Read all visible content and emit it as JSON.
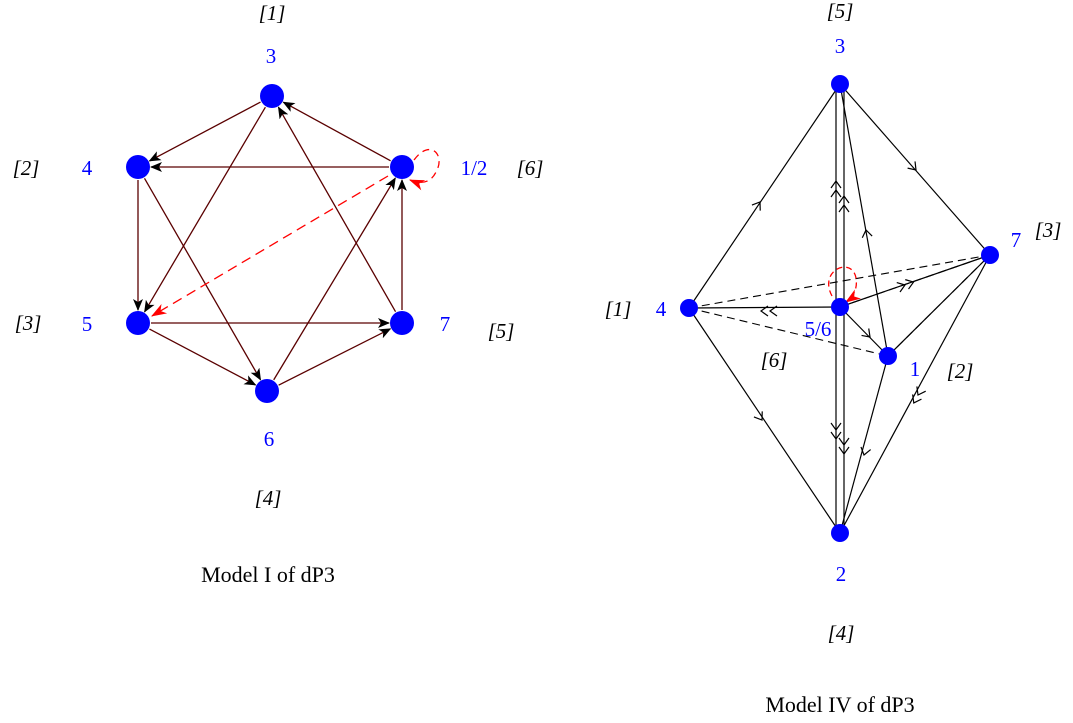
{
  "colors": {
    "node": "#0000ff",
    "node_label": "#0000ff",
    "edge": "#000000",
    "edge_model1": "#5a0000",
    "highlight": "#ff0000",
    "bracket": "#000000"
  },
  "model1": {
    "caption": "Model  I  of dP3",
    "nodes": [
      {
        "id": "n3",
        "label": "3",
        "bracket": "[1]"
      },
      {
        "id": "n4",
        "label": "4",
        "bracket": "[2]"
      },
      {
        "id": "n12",
        "label": "1/2",
        "bracket": "[6]"
      },
      {
        "id": "n5",
        "label": "5",
        "bracket": "[3]"
      },
      {
        "id": "n7",
        "label": "7",
        "bracket": "[5]"
      },
      {
        "id": "n6",
        "label": "6",
        "bracket": "[4]"
      }
    ],
    "edges": [
      {
        "from": "n3",
        "to": "n4"
      },
      {
        "from": "n3",
        "to": "n5"
      },
      {
        "from": "n12",
        "to": "n3"
      },
      {
        "from": "n12",
        "to": "n4"
      },
      {
        "from": "n4",
        "to": "n5"
      },
      {
        "from": "n4",
        "to": "n6"
      },
      {
        "from": "n5",
        "to": "n7"
      },
      {
        "from": "n5",
        "to": "n6"
      },
      {
        "from": "n6",
        "to": "n7"
      },
      {
        "from": "n6",
        "to": "n12"
      },
      {
        "from": "n7",
        "to": "n3"
      },
      {
        "from": "n7",
        "to": "n12"
      }
    ],
    "special_edges": [
      {
        "from": "n12",
        "to": "n5",
        "style": "dashed-red"
      },
      {
        "from": "n12",
        "to": "n12",
        "style": "loop-red"
      }
    ]
  },
  "model4": {
    "caption": "Model IV of dP3",
    "nodes": [
      {
        "id": "m3",
        "label": "3",
        "bracket": "[5]"
      },
      {
        "id": "m7",
        "label": "7",
        "bracket": "[3]"
      },
      {
        "id": "m4",
        "label": "4",
        "bracket": "[1]"
      },
      {
        "id": "m56",
        "label": "5/6",
        "bracket": "[6]"
      },
      {
        "id": "m1",
        "label": "1",
        "bracket": "[2]"
      },
      {
        "id": "m2",
        "label": "2",
        "bracket": "[4]"
      }
    ]
  }
}
